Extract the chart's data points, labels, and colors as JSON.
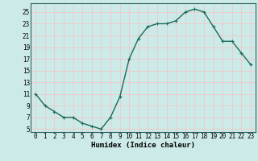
{
  "x": [
    0,
    1,
    2,
    3,
    4,
    5,
    6,
    7,
    8,
    9,
    10,
    11,
    12,
    13,
    14,
    15,
    16,
    17,
    18,
    19,
    20,
    21,
    22,
    23
  ],
  "y": [
    11,
    9,
    8,
    7,
    7,
    6,
    5.5,
    5,
    7,
    10.5,
    17,
    20.5,
    22.5,
    23,
    23,
    23.5,
    25,
    25.5,
    25,
    22.5,
    20,
    20,
    18,
    16
  ],
  "line_color": "#1a6b5a",
  "marker": "+",
  "bg_color": "#cceae8",
  "grid_color_major": "#f0c8c8",
  "grid_color_minor": "#ffffff",
  "xlabel": "Humidex (Indice chaleur)",
  "ylim": [
    4.5,
    26.5
  ],
  "xlim": [
    -0.5,
    23.5
  ],
  "yticks": [
    5,
    7,
    9,
    11,
    13,
    15,
    17,
    19,
    21,
    23,
    25
  ],
  "xticks": [
    0,
    1,
    2,
    3,
    4,
    5,
    6,
    7,
    8,
    9,
    10,
    11,
    12,
    13,
    14,
    15,
    16,
    17,
    18,
    19,
    20,
    21,
    22,
    23
  ],
  "tick_fontsize": 5.5,
  "label_fontsize": 6.5,
  "line_width": 1.0,
  "marker_size": 3.5,
  "marker_edge_width": 0.8
}
